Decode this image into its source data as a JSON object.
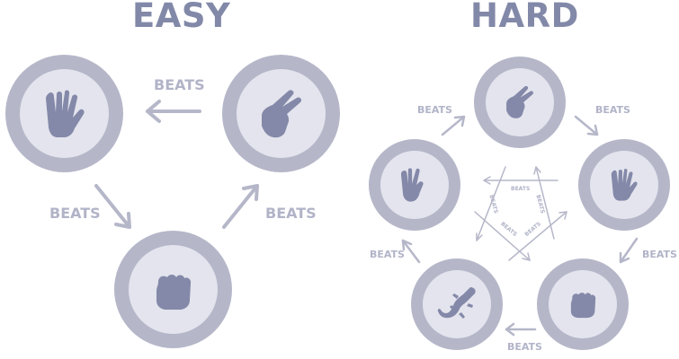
{
  "easy": {
    "title": "EASY",
    "labels": [
      "BEATS",
      "BEATS",
      "BEATS"
    ],
    "tokens": [
      {
        "id": "paper",
        "icon": "open-hand-icon"
      },
      {
        "id": "scissors",
        "icon": "scissors-hand-icon"
      },
      {
        "id": "rock",
        "icon": "fist-icon"
      }
    ]
  },
  "hard": {
    "title": "HARD",
    "outer_labels": [
      "BEATS",
      "BEATS",
      "BEATS",
      "BEATS",
      "BEATS"
    ],
    "inner_labels": [
      "BEATS",
      "BEATS",
      "BEATS",
      "BEATS",
      "BEATS"
    ],
    "tokens": [
      {
        "id": "scissors",
        "icon": "scissors-hand-icon"
      },
      {
        "id": "paper",
        "icon": "open-hand-icon"
      },
      {
        "id": "rock",
        "icon": "fist-icon"
      },
      {
        "id": "lizard",
        "icon": "lizard-icon"
      },
      {
        "id": "spock",
        "icon": "spock-hand-icon"
      }
    ]
  },
  "colors": {
    "title": "#8289a8",
    "label": "#b1b4c8",
    "ring": "#b5b7c9",
    "disc": "#e3e4ed",
    "icon": "#8489a9",
    "arrow": "#b5b7c9"
  }
}
